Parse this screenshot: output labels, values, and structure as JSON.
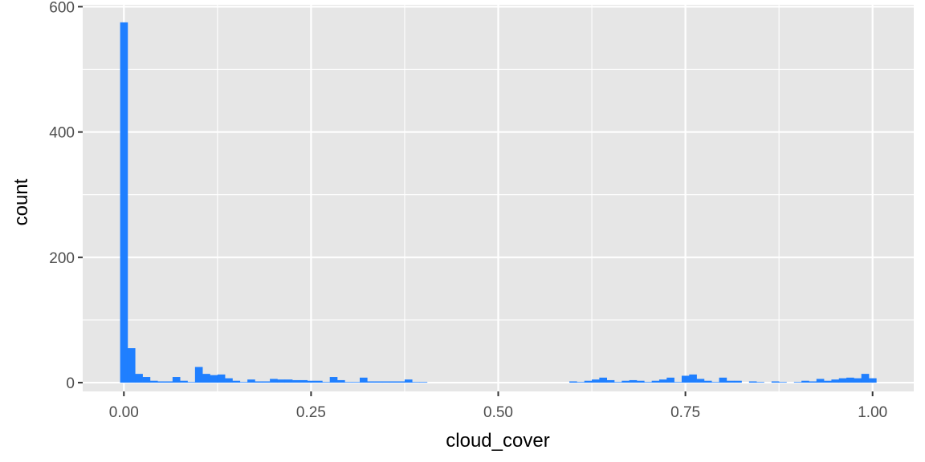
{
  "chart_data": {
    "type": "bar",
    "subtype": "histogram",
    "title": "",
    "xlabel": "cloud_cover",
    "ylabel": "count",
    "xlim": [
      -0.055,
      1.055
    ],
    "ylim": [
      -14,
      603
    ],
    "x_ticks": [
      0,
      0.25,
      0.5,
      0.75,
      1
    ],
    "x_tick_labels": [
      "0.00",
      "0.25",
      "0.50",
      "0.75",
      "1.00"
    ],
    "y_ticks": [
      0,
      200,
      400,
      600
    ],
    "y_tick_labels": [
      "0",
      "200",
      "400",
      "600"
    ],
    "grid": true,
    "legend": "none",
    "bin_width": 0.01,
    "bin_centers": [
      0,
      0.01,
      0.02,
      0.03,
      0.04,
      0.05,
      0.06,
      0.07,
      0.08,
      0.09,
      0.1,
      0.11,
      0.12,
      0.13,
      0.14,
      0.15,
      0.16,
      0.17,
      0.18,
      0.19,
      0.2,
      0.21,
      0.22,
      0.23,
      0.24,
      0.25,
      0.26,
      0.27,
      0.28,
      0.29,
      0.3,
      0.31,
      0.32,
      0.33,
      0.34,
      0.35,
      0.36,
      0.37,
      0.38,
      0.39,
      0.4,
      0.6,
      0.61,
      0.62,
      0.63,
      0.64,
      0.65,
      0.66,
      0.67,
      0.68,
      0.69,
      0.7,
      0.71,
      0.72,
      0.73,
      0.74,
      0.75,
      0.76,
      0.77,
      0.78,
      0.79,
      0.8,
      0.81,
      0.82,
      0.84,
      0.85,
      0.87,
      0.88,
      0.9,
      0.91,
      0.92,
      0.93,
      0.94,
      0.95,
      0.96,
      0.97,
      0.98,
      0.99,
      1.0
    ],
    "counts": [
      575,
      55,
      14,
      9,
      3,
      2,
      2,
      9,
      3,
      1,
      25,
      14,
      12,
      13,
      7,
      3,
      1,
      5,
      2,
      2,
      6,
      5,
      5,
      4,
      4,
      3,
      3,
      1,
      9,
      4,
      1,
      1,
      8,
      2,
      2,
      2,
      2,
      2,
      5,
      1,
      1,
      2,
      1,
      3,
      5,
      8,
      4,
      1,
      3,
      4,
      3,
      1,
      3,
      5,
      8,
      1,
      11,
      13,
      6,
      3,
      1,
      8,
      3,
      3,
      2,
      1,
      2,
      1,
      1,
      3,
      2,
      6,
      3,
      5,
      7,
      8,
      7,
      14,
      7
    ],
    "colors": {
      "bar": "#1f7fff",
      "panel_background": "#e6e6e6",
      "grid": "#ffffff",
      "tick": "#333333",
      "tick_label": "#4d4d4d",
      "axis_title": "#000000"
    }
  }
}
